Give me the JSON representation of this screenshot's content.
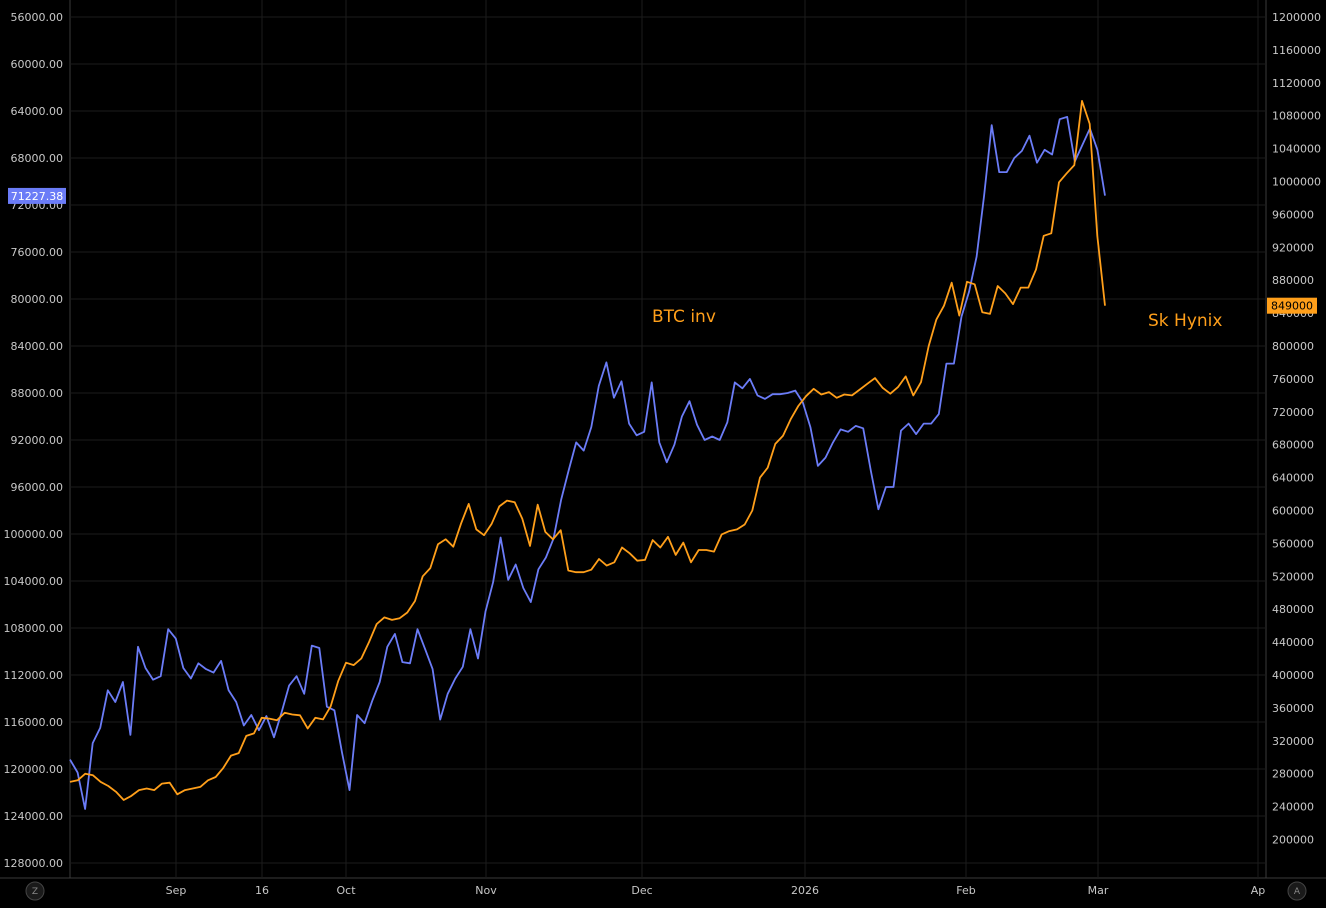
{
  "chart_data": {
    "type": "line",
    "x_tick_labels": [
      "Sep",
      "16",
      "Oct",
      "Nov",
      "Dec",
      "2026",
      "Feb",
      "Mar",
      "Ap"
    ],
    "left_axis": {
      "inverted": true,
      "ticks": [
        "56000.00",
        "60000.00",
        "64000.00",
        "68000.00",
        "72000.00",
        "76000.00",
        "80000.00",
        "84000.00",
        "88000.00",
        "92000.00",
        "96000.00",
        "100000.00",
        "104000.00",
        "108000.00",
        "112000.00",
        "116000.00",
        "120000.00",
        "124000.00",
        "128000.00"
      ],
      "ylim": [
        54000,
        130000
      ]
    },
    "right_axis": {
      "ticks": [
        "1200000",
        "1160000",
        "1120000",
        "1080000",
        "1040000",
        "1000000",
        "960000",
        "920000",
        "880000",
        "840000",
        "800000",
        "760000",
        "720000",
        "680000",
        "640000",
        "600000",
        "560000",
        "520000",
        "480000",
        "440000",
        "400000",
        "360000",
        "320000",
        "280000",
        "240000",
        "200000"
      ],
      "ylim": [
        180000,
        1220000
      ]
    },
    "series": [
      {
        "name": "BTC inv",
        "axis": "left",
        "color": "#6b7cf7",
        "last_value_label": "71227.38",
        "values": [
          119200,
          120300,
          123400,
          117800,
          116500,
          113300,
          114300,
          112600,
          117100,
          109600,
          111400,
          112400,
          112100,
          108100,
          108900,
          111400,
          112300,
          111000,
          111500,
          111800,
          110800,
          113300,
          114300,
          116300,
          115400,
          116700,
          115500,
          117300,
          115200,
          112900,
          112100,
          113600,
          109500,
          109700,
          114700,
          115000,
          118600,
          121800,
          115400,
          116100,
          114200,
          112600,
          109600,
          108500,
          110900,
          111000,
          108100,
          109800,
          111500,
          115800,
          113600,
          112300,
          111300,
          108100,
          110600,
          106600,
          104100,
          100300,
          103900,
          102600,
          104600,
          105800,
          103000,
          102000,
          100400,
          97100,
          94600,
          92200,
          92900,
          90900,
          87400,
          85400,
          88400,
          87000,
          90600,
          91600,
          91300,
          87100,
          92200,
          93900,
          92400,
          90000,
          88700,
          90700,
          92000,
          91700,
          92000,
          90500,
          87100,
          87600,
          86800,
          88200,
          88500,
          88100,
          88100,
          88000,
          87800,
          88800,
          90900,
          94200,
          93500,
          92200,
          91100,
          91300,
          90800,
          91000,
          94600,
          97900,
          96000,
          96000,
          91200,
          90600,
          91500,
          90600,
          90600,
          89800,
          85500,
          85500,
          81500,
          79400,
          76400,
          71200,
          65200,
          69200,
          69200,
          68000,
          67400,
          66100,
          68400,
          67300,
          67700,
          64700,
          64500,
          68300,
          66900,
          65500,
          67300,
          71200
        ]
      },
      {
        "name": "Sk Hynix",
        "axis": "right",
        "color": "#ff9f1a",
        "last_value_label": "849000",
        "values": [
          270000,
          272000,
          280000,
          278000,
          270000,
          265000,
          258000,
          248000,
          253000,
          260000,
          262000,
          260000,
          268000,
          269000,
          255000,
          260000,
          262000,
          264000,
          272000,
          276000,
          287000,
          302000,
          305000,
          326000,
          329000,
          348000,
          347000,
          345000,
          354000,
          352000,
          351000,
          335000,
          348000,
          346000,
          362000,
          393000,
          415000,
          412000,
          420000,
          440000,
          462000,
          470000,
          467000,
          469000,
          476000,
          490000,
          520000,
          530000,
          559000,
          565000,
          556000,
          584000,
          608000,
          577000,
          570000,
          584000,
          605000,
          612000,
          610000,
          590000,
          557000,
          607000,
          574000,
          565000,
          576000,
          527000,
          525000,
          525000,
          528000,
          541000,
          533000,
          537000,
          555000,
          548000,
          539000,
          540000,
          564000,
          555000,
          568000,
          546000,
          561000,
          537000,
          552000,
          552000,
          550000,
          571000,
          575000,
          577000,
          583000,
          600000,
          640000,
          652000,
          681000,
          691000,
          711000,
          727000,
          739000,
          748000,
          741000,
          744000,
          737000,
          741000,
          740000,
          747000,
          754000,
          761000,
          749000,
          742000,
          750000,
          763000,
          740000,
          756000,
          800000,
          832000,
          849000,
          877000,
          837000,
          878000,
          875000,
          841000,
          839000,
          873000,
          864000,
          851000,
          871000,
          871000,
          893000,
          934000,
          937000,
          999000,
          1010000,
          1020000,
          1098000,
          1070000,
          934000,
          849000
        ]
      }
    ],
    "annotations": [
      {
        "text": "BTC inv",
        "color": "#ff9f1a"
      },
      {
        "text": "Sk Hynix",
        "color": "#ff9f1a"
      }
    ],
    "grid": true,
    "corner_buttons": {
      "left": "Z",
      "right": "A"
    }
  }
}
